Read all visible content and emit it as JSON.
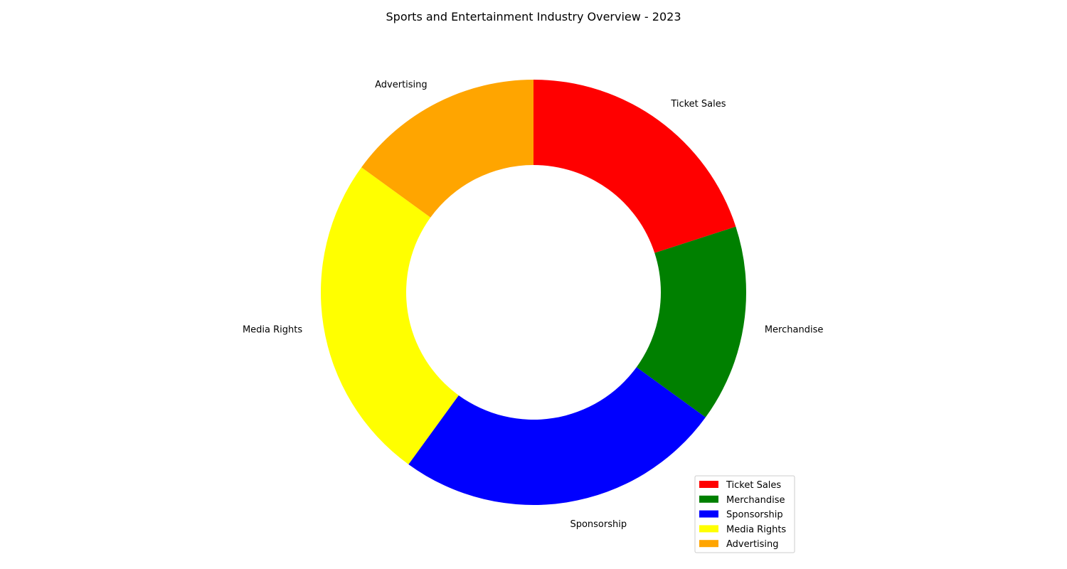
{
  "chart_data": {
    "type": "pie",
    "style": "donut",
    "title": "Sports and Entertainment Industry Overview - 2023",
    "categories": [
      "Ticket Sales",
      "Merchandise",
      "Sponsorship",
      "Media Rights",
      "Advertising"
    ],
    "values": [
      20,
      15,
      25,
      25,
      15
    ],
    "colors": [
      "#ff0000",
      "#008000",
      "#0000ff",
      "#ffff00",
      "#ffa500"
    ],
    "start_angle": "12 o'clock",
    "direction": "clockwise",
    "legend": {
      "placement": "lower-right",
      "entries": [
        "Ticket Sales",
        "Merchandise",
        "Sponsorship",
        "Media Rights",
        "Advertising"
      ]
    }
  }
}
